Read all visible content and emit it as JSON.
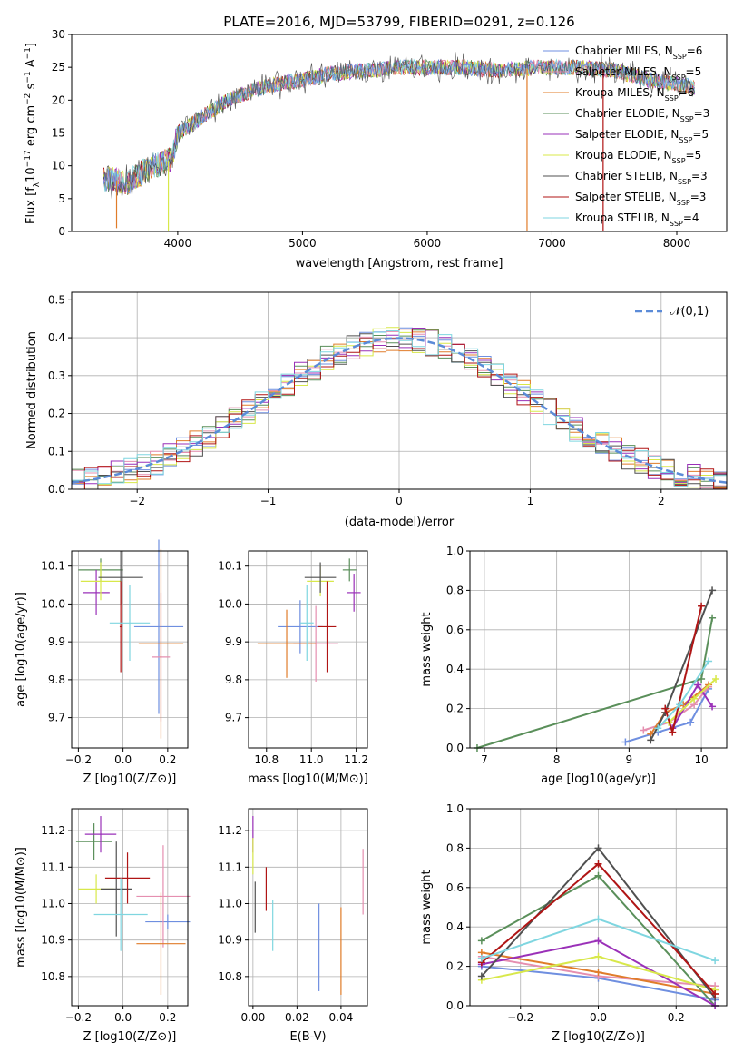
{
  "figure": {
    "title": "PLATE=2016, MJD=53799, FIBERID=0291, z=0.126"
  },
  "colors": {
    "Chabrier MILES": "#6f8fe0",
    "Salpeter MILES": "#e58fb0",
    "Kroupa MILES": "#e07c2a",
    "Chabrier ELODIE": "#5a8f5a",
    "Salpeter ELODIE": "#9a30b8",
    "Kroupa ELODIE": "#d8e84a",
    "Chabrier STELIB": "#505050",
    "Salpeter STELIB": "#b01515",
    "Kroupa STELIB": "#7fd6e0"
  },
  "chart_data": [
    {
      "id": "spectrum",
      "type": "line",
      "title": "PLATE=2016, MJD=53799, FIBERID=0291, z=0.126",
      "xlabel": "wavelength [Angstrom, rest frame]",
      "ylabel": "Flux [f_λ 10^-17 erg cm^-2 s^-1 A^-1]",
      "xlim": [
        3150,
        8400
      ],
      "ylim": [
        0,
        30
      ],
      "xticks": [
        4000,
        5000,
        6000,
        7000,
        8000
      ],
      "yticks": [
        0,
        5,
        10,
        15,
        20,
        25,
        30
      ],
      "grid": false,
      "legend_placement": "top-right",
      "series": [
        {
          "name": "Chabrier MILES, N_SSP=6"
        },
        {
          "name": "Salpeter MILES, N_SSP=5"
        },
        {
          "name": "Kroupa MILES, N_SSP=6"
        },
        {
          "name": "Chabrier ELODIE, N_SSP=3"
        },
        {
          "name": "Salpeter ELODIE, N_SSP=5"
        },
        {
          "name": "Kroupa ELODIE, N_SSP=5"
        },
        {
          "name": "Chabrier STELIB, N_SSP=3"
        },
        {
          "name": "Salpeter STELIB, N_SSP=3"
        },
        {
          "name": "Kroupa STELIB, N_SSP=4"
        }
      ],
      "continuum": {
        "x": [
          3400,
          3600,
          3800,
          3950,
          4000,
          4200,
          4400,
          4600,
          4800,
          5000,
          5200,
          5500,
          5800,
          6000,
          6300,
          6600,
          6900,
          7200,
          7500,
          7800,
          8150
        ],
        "y": [
          8,
          7.5,
          10,
          11,
          15,
          17.5,
          20,
          21.5,
          22.5,
          23,
          24,
          24.5,
          25,
          25,
          25,
          24.5,
          25,
          25,
          24.5,
          23,
          22
        ]
      },
      "dips": [
        {
          "x": 3510,
          "y": 0.5
        },
        {
          "x": 3925,
          "y": 0
        },
        {
          "x": 6800,
          "y": 0
        },
        {
          "x": 7410,
          "y": 0
        }
      ]
    },
    {
      "id": "residuals",
      "type": "histogram",
      "xlabel": "(data-model)/error",
      "ylabel": "Normed distribution",
      "xlim": [
        -2.5,
        2.5
      ],
      "ylim": [
        0,
        0.52
      ],
      "xticks": [
        -2,
        -1,
        0,
        1,
        2
      ],
      "yticks": [
        0.0,
        0.1,
        0.2,
        0.3,
        0.4,
        0.5
      ],
      "grid": true,
      "legend_placement": "top-right",
      "legend": "𝒩(0,1)",
      "curve_color": "#5b8bd8"
    },
    {
      "id": "age_vs_Z",
      "type": "scatter",
      "xlabel": "Z [log10(Z/Z⊙)]",
      "ylabel": "age  [log10(age/yr)]",
      "xlim": [
        -0.23,
        0.29
      ],
      "ylim": [
        9.62,
        10.14
      ],
      "xticks": [
        -0.2,
        0.0,
        0.2
      ],
      "yticks": [
        9.7,
        9.8,
        9.9,
        10.0,
        10.1
      ],
      "grid": true,
      "points": [
        {
          "series": "Chabrier MILES",
          "x": 0.16,
          "y": 9.94,
          "xerr": 0.11,
          "yerr": 0.23
        },
        {
          "series": "Salpeter MILES",
          "x": 0.17,
          "y": 9.86,
          "xerr": 0.04,
          "yerr": 0.17
        },
        {
          "series": "Kroupa MILES",
          "x": 0.17,
          "y": 9.895,
          "xerr": 0.1,
          "yerr": 0.25
        },
        {
          "series": "Chabrier ELODIE",
          "x": -0.1,
          "y": 10.09,
          "xerr": 0.1,
          "yerr": 0.03
        },
        {
          "series": "Salpeter ELODIE",
          "x": -0.12,
          "y": 10.03,
          "xerr": 0.06,
          "yerr": 0.06
        },
        {
          "series": "Kroupa ELODIE",
          "x": -0.1,
          "y": 10.06,
          "xerr": 0.09,
          "yerr": 0.05
        },
        {
          "series": "Chabrier STELIB",
          "x": -0.01,
          "y": 10.07,
          "xerr": 0.1,
          "yerr": 0.07
        },
        {
          "series": "Salpeter STELIB",
          "x": -0.01,
          "y": 9.94,
          "xerr": 0.005,
          "yerr": 0.12
        },
        {
          "series": "Kroupa STELIB",
          "x": 0.03,
          "y": 9.95,
          "xerr": 0.09,
          "yerr": 0.1
        }
      ]
    },
    {
      "id": "age_vs_mass",
      "type": "scatter",
      "xlabel": "mass [log10(M/M⊙)]",
      "ylabel": "",
      "xlim": [
        10.72,
        11.25
      ],
      "ylim": [
        9.62,
        10.14
      ],
      "xticks": [
        10.8,
        11.0,
        11.2
      ],
      "yticks": [
        9.7,
        9.8,
        9.9,
        10.0,
        10.1
      ],
      "grid": true,
      "points": [
        {
          "series": "Chabrier MILES",
          "x": 10.95,
          "y": 9.94,
          "xerr": 0.1,
          "yerr": 0.07
        },
        {
          "series": "Salpeter MILES",
          "x": 11.02,
          "y": 9.895,
          "xerr": 0.1,
          "yerr": 0.1
        },
        {
          "series": "Kroupa MILES",
          "x": 10.89,
          "y": 9.895,
          "xerr": 0.13,
          "yerr": 0.09
        },
        {
          "series": "Chabrier ELODIE",
          "x": 11.17,
          "y": 10.09,
          "xerr": 0.03,
          "yerr": 0.03
        },
        {
          "series": "Salpeter ELODIE",
          "x": 11.19,
          "y": 10.03,
          "xerr": 0.03,
          "yerr": 0.05
        },
        {
          "series": "Kroupa ELODIE",
          "x": 11.04,
          "y": 10.06,
          "xerr": 0.06,
          "yerr": 0.04
        },
        {
          "series": "Chabrier STELIB",
          "x": 11.04,
          "y": 10.07,
          "xerr": 0.07,
          "yerr": 0.04
        },
        {
          "series": "Salpeter STELIB",
          "x": 11.07,
          "y": 9.94,
          "xerr": 0.04,
          "yerr": 0.12
        },
        {
          "series": "Kroupa STELIB",
          "x": 10.98,
          "y": 9.95,
          "xerr": 0.03,
          "yerr": 0.1
        }
      ]
    },
    {
      "id": "weight_vs_age",
      "type": "line",
      "xlabel": "age  [log10(age/yr)]",
      "ylabel": "mass weight",
      "xlim": [
        6.8,
        10.35
      ],
      "ylim": [
        0,
        1.0
      ],
      "xticks": [
        7,
        8,
        9,
        10
      ],
      "yticks": [
        0.0,
        0.2,
        0.4,
        0.6,
        0.8,
        1.0
      ],
      "grid": true,
      "series": [
        {
          "name": "Chabrier MILES",
          "x": [
            8.95,
            9.4,
            9.85,
            10.1
          ],
          "y": [
            0.03,
            0.08,
            0.13,
            0.3
          ]
        },
        {
          "name": "Salpeter MILES",
          "x": [
            9.2,
            9.55,
            9.9,
            10.1
          ],
          "y": [
            0.09,
            0.13,
            0.22,
            0.31
          ]
        },
        {
          "name": "Kroupa MILES",
          "x": [
            9.3,
            9.5,
            9.75,
            10.1
          ],
          "y": [
            0.07,
            0.18,
            0.22,
            0.32
          ]
        },
        {
          "name": "Chabrier ELODIE",
          "x": [
            6.9,
            10.0,
            10.15
          ],
          "y": [
            0.0,
            0.35,
            0.66
          ]
        },
        {
          "name": "Salpeter ELODIE",
          "x": [
            9.6,
            9.95,
            10.15
          ],
          "y": [
            0.1,
            0.32,
            0.21
          ]
        },
        {
          "name": "Kroupa ELODIE",
          "x": [
            9.55,
            9.9,
            10.2
          ],
          "y": [
            0.13,
            0.25,
            0.35
          ]
        },
        {
          "name": "Chabrier STELIB",
          "x": [
            9.3,
            9.5,
            10.15
          ],
          "y": [
            0.04,
            0.18,
            0.8
          ]
        },
        {
          "name": "Salpeter STELIB",
          "x": [
            9.5,
            9.6,
            10.0
          ],
          "y": [
            0.2,
            0.08,
            0.72
          ]
        },
        {
          "name": "Kroupa STELIB",
          "x": [
            9.4,
            9.7,
            10.1
          ],
          "y": [
            0.1,
            0.22,
            0.44
          ]
        }
      ]
    },
    {
      "id": "mass_vs_Z",
      "type": "scatter",
      "xlabel": "Z [log10(Z/Z⊙)]",
      "ylabel": "mass [log10(M/M⊙)]",
      "xlim": [
        -0.23,
        0.29
      ],
      "ylim": [
        10.72,
        11.26
      ],
      "xticks": [
        -0.2,
        0.0,
        0.2
      ],
      "yticks": [
        10.8,
        10.9,
        11.0,
        11.1,
        11.2
      ],
      "grid": true,
      "points": [
        {
          "series": "Chabrier MILES",
          "x": 0.2,
          "y": 10.95,
          "xerr": 0.1,
          "yerr": 0.02
        },
        {
          "series": "Salpeter MILES",
          "x": 0.18,
          "y": 11.02,
          "xerr": 0.12,
          "yerr": 0.14
        },
        {
          "series": "Kroupa MILES",
          "x": 0.17,
          "y": 10.89,
          "xerr": 0.11,
          "yerr": 0.14
        },
        {
          "series": "Chabrier ELODIE",
          "x": -0.13,
          "y": 11.17,
          "xerr": 0.08,
          "yerr": 0.05
        },
        {
          "series": "Salpeter ELODIE",
          "x": -0.1,
          "y": 11.19,
          "xerr": 0.07,
          "yerr": 0.05
        },
        {
          "series": "Kroupa ELODIE",
          "x": -0.12,
          "y": 11.04,
          "xerr": 0.08,
          "yerr": 0.04
        },
        {
          "series": "Chabrier STELIB",
          "x": -0.03,
          "y": 11.04,
          "xerr": 0.07,
          "yerr": 0.13
        },
        {
          "series": "Salpeter STELIB",
          "x": 0.02,
          "y": 11.07,
          "xerr": 0.1,
          "yerr": 0.07
        },
        {
          "series": "Kroupa STELIB",
          "x": -0.01,
          "y": 10.97,
          "xerr": 0.12,
          "yerr": 0.1
        }
      ]
    },
    {
      "id": "mass_vs_ebv",
      "type": "scatter",
      "xlabel": "E(B-V)",
      "ylabel": "",
      "xlim": [
        -0.002,
        0.052
      ],
      "ylim": [
        10.72,
        11.26
      ],
      "xticks": [
        0.0,
        0.02,
        0.04
      ],
      "yticks": [
        10.8,
        10.9,
        11.0,
        11.1,
        11.2
      ],
      "grid": true,
      "points": [
        {
          "series": "Chabrier MILES",
          "x": 0.03,
          "y": 10.88,
          "yerr": 0.12
        },
        {
          "series": "Salpeter MILES",
          "x": 0.05,
          "y": 11.06,
          "yerr": 0.09
        },
        {
          "series": "Kroupa MILES",
          "x": 0.04,
          "y": 10.87,
          "yerr": 0.12
        },
        {
          "series": "Salpeter ELODIE",
          "x": 0.0,
          "y": 11.19,
          "yerr": 0.05
        },
        {
          "series": "Kroupa ELODIE",
          "x": 0.0,
          "y": 11.13,
          "yerr": 0.05
        },
        {
          "series": "Chabrier STELIB",
          "x": 0.001,
          "y": 10.99,
          "yerr": 0.07
        },
        {
          "series": "Salpeter STELIB",
          "x": 0.006,
          "y": 11.04,
          "yerr": 0.06
        },
        {
          "series": "Kroupa STELIB",
          "x": 0.009,
          "y": 10.94,
          "yerr": 0.07
        }
      ]
    },
    {
      "id": "weight_vs_Z",
      "type": "line",
      "xlabel": "Z [log10(Z/Z⊙)]",
      "ylabel": "mass weight",
      "xlim": [
        -0.33,
        0.33
      ],
      "ylim": [
        0,
        1.0
      ],
      "xticks": [
        -0.2,
        0.0,
        0.2
      ],
      "yticks": [
        0.0,
        0.2,
        0.4,
        0.6,
        0.8,
        1.0
      ],
      "grid": true,
      "series": [
        {
          "name": "Chabrier MILES",
          "x": [
            -0.3,
            0.0,
            0.3
          ],
          "y": [
            0.2,
            0.14,
            0.03
          ]
        },
        {
          "name": "Salpeter MILES",
          "x": [
            -0.3,
            0.0,
            0.3
          ],
          "y": [
            0.25,
            0.15,
            0.1
          ]
        },
        {
          "name": "Kroupa MILES",
          "x": [
            -0.3,
            0.0,
            0.3
          ],
          "y": [
            0.27,
            0.17,
            0.06
          ]
        },
        {
          "name": "Chabrier ELODIE",
          "x": [
            -0.3,
            0.0,
            0.3
          ],
          "y": [
            0.33,
            0.66,
            0.0
          ]
        },
        {
          "name": "Salpeter ELODIE",
          "x": [
            -0.3,
            0.0,
            0.3
          ],
          "y": [
            0.21,
            0.33,
            0.0
          ]
        },
        {
          "name": "Kroupa ELODIE",
          "x": [
            -0.3,
            0.0,
            0.3
          ],
          "y": [
            0.13,
            0.25,
            0.08
          ]
        },
        {
          "name": "Chabrier STELIB",
          "x": [
            -0.3,
            0.0,
            0.3
          ],
          "y": [
            0.15,
            0.8,
            0.04
          ]
        },
        {
          "name": "Salpeter STELIB",
          "x": [
            -0.3,
            0.0,
            0.3
          ],
          "y": [
            0.22,
            0.72,
            0.06
          ]
        },
        {
          "name": "Kroupa STELIB",
          "x": [
            -0.3,
            0.0,
            0.3
          ],
          "y": [
            0.24,
            0.44,
            0.23
          ]
        }
      ]
    }
  ]
}
